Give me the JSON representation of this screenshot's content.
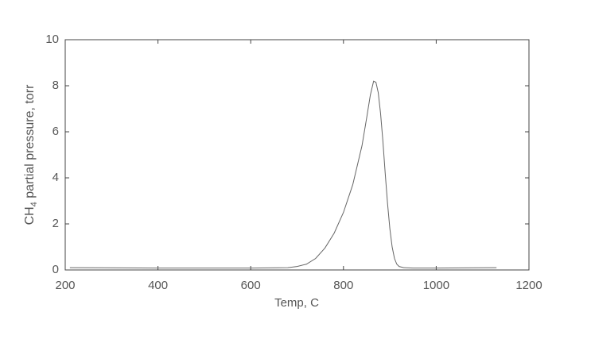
{
  "chart_data": {
    "type": "line",
    "xlabel": "Temp, C",
    "ylabel_parts": [
      "CH",
      "4",
      " partial pressure, torr"
    ],
    "x": [
      210,
      400,
      600,
      680,
      700,
      720,
      740,
      760,
      780,
      800,
      820,
      840,
      850,
      858,
      865,
      870,
      875,
      880,
      885,
      890,
      895,
      900,
      905,
      910,
      915,
      920,
      930,
      950,
      1000,
      1130
    ],
    "series": [
      {
        "color": "#666666",
        "values": [
          0.1,
          0.08,
          0.08,
          0.1,
          0.15,
          0.25,
          0.5,
          0.95,
          1.6,
          2.5,
          3.7,
          5.4,
          6.6,
          7.6,
          8.2,
          8.15,
          7.7,
          6.8,
          5.6,
          4.2,
          2.9,
          1.8,
          1.0,
          0.5,
          0.25,
          0.15,
          0.1,
          0.08,
          0.08,
          0.1
        ]
      }
    ],
    "xlim": [
      200,
      1200
    ],
    "xticks": [
      200,
      400,
      600,
      800,
      1000,
      1200
    ],
    "ylim": [
      0,
      10
    ],
    "yticks": [
      0,
      2,
      4,
      6,
      8,
      10
    ]
  }
}
